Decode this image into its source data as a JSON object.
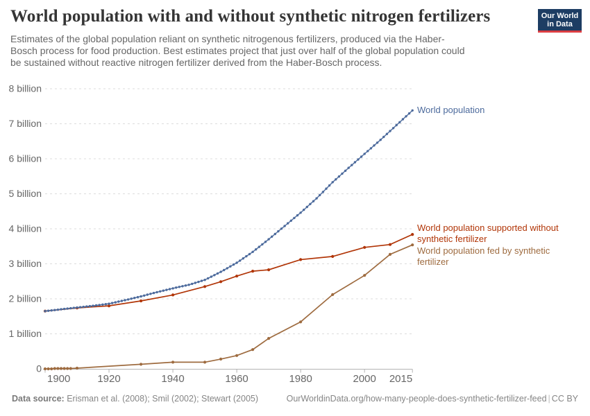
{
  "header": {
    "title": "World population with and without synthetic nitrogen fertilizers",
    "subtitle": "Estimates of the global population reliant on synthetic nitrogenous fertilizers, produced via the Haber-Bosch process for food production. Best estimates project that just over half of the global population could be sustained without reactive nitrogen fertilizer derived from the Haber-Bosch process.",
    "logo": {
      "line1": "Our World",
      "line2": "in Data",
      "bg_color": "#1d3d63",
      "accent_color": "#dc3e43"
    }
  },
  "chart_data": {
    "type": "line",
    "title": "World population with and without synthetic nitrogen fertilizers",
    "xlabel": "",
    "ylabel": "",
    "unit": "billion",
    "xlim": [
      1900,
      2015
    ],
    "ylim": [
      0,
      8
    ],
    "grid": "dashed-horizontal",
    "legend_position": "end-of-line-labels",
    "x_ticks": [
      1900,
      1920,
      1940,
      1960,
      1980,
      2000,
      2015
    ],
    "y_ticks": [
      0,
      1,
      2,
      3,
      4,
      5,
      6,
      7,
      8
    ],
    "y_tick_labels": [
      "0",
      "1 billion",
      "2 billion",
      "3 billion",
      "4 billion",
      "5 billion",
      "6 billion",
      "7 billion",
      "8 billion"
    ],
    "series": [
      {
        "name": "World population",
        "color": "#4c6a9c",
        "marker": "annual-dots",
        "x": [
          1900,
          1905,
          1910,
          1915,
          1920,
          1925,
          1930,
          1935,
          1940,
          1945,
          1950,
          1955,
          1960,
          1965,
          1970,
          1975,
          1980,
          1985,
          1990,
          1995,
          2000,
          2005,
          2010,
          2015
        ],
        "values": [
          1.65,
          1.7,
          1.75,
          1.8,
          1.86,
          1.96,
          2.07,
          2.19,
          2.3,
          2.4,
          2.54,
          2.77,
          3.03,
          3.34,
          3.7,
          4.08,
          4.46,
          4.87,
          5.33,
          5.74,
          6.14,
          6.54,
          6.96,
          7.38
        ]
      },
      {
        "name": "World population supported without synthetic fertilizer",
        "color": "#b13507",
        "marker": "point",
        "x": [
          1900,
          1910,
          1920,
          1930,
          1940,
          1950,
          1955,
          1960,
          1965,
          1970,
          1980,
          1990,
          2000,
          2008,
          2015
        ],
        "values": [
          1.65,
          1.74,
          1.8,
          1.94,
          2.11,
          2.35,
          2.49,
          2.65,
          2.79,
          2.83,
          3.12,
          3.21,
          3.47,
          3.55,
          3.84
        ]
      },
      {
        "name": "World population fed by synthetic fertilizer",
        "color": "#9e6b3f",
        "marker": "point",
        "x": [
          1900,
          1901,
          1902,
          1903,
          1904,
          1905,
          1906,
          1907,
          1908,
          1910,
          1930,
          1940,
          1950,
          1955,
          1960,
          1965,
          1970,
          1980,
          1990,
          2000,
          2008,
          2015
        ],
        "values": [
          0.0,
          0.0,
          0.0,
          0.01,
          0.01,
          0.01,
          0.01,
          0.01,
          0.01,
          0.02,
          0.13,
          0.19,
          0.19,
          0.28,
          0.38,
          0.55,
          0.87,
          1.34,
          2.12,
          2.67,
          3.27,
          3.54
        ]
      }
    ]
  },
  "footer": {
    "source_label": "Data source:",
    "sources": "Erisman et al. (2008); Smil (2002); Stewart (2005)",
    "url": "OurWorldinData.org/how-many-people-does-synthetic-fertilizer-feed",
    "separator": "|",
    "license": "CC BY"
  }
}
